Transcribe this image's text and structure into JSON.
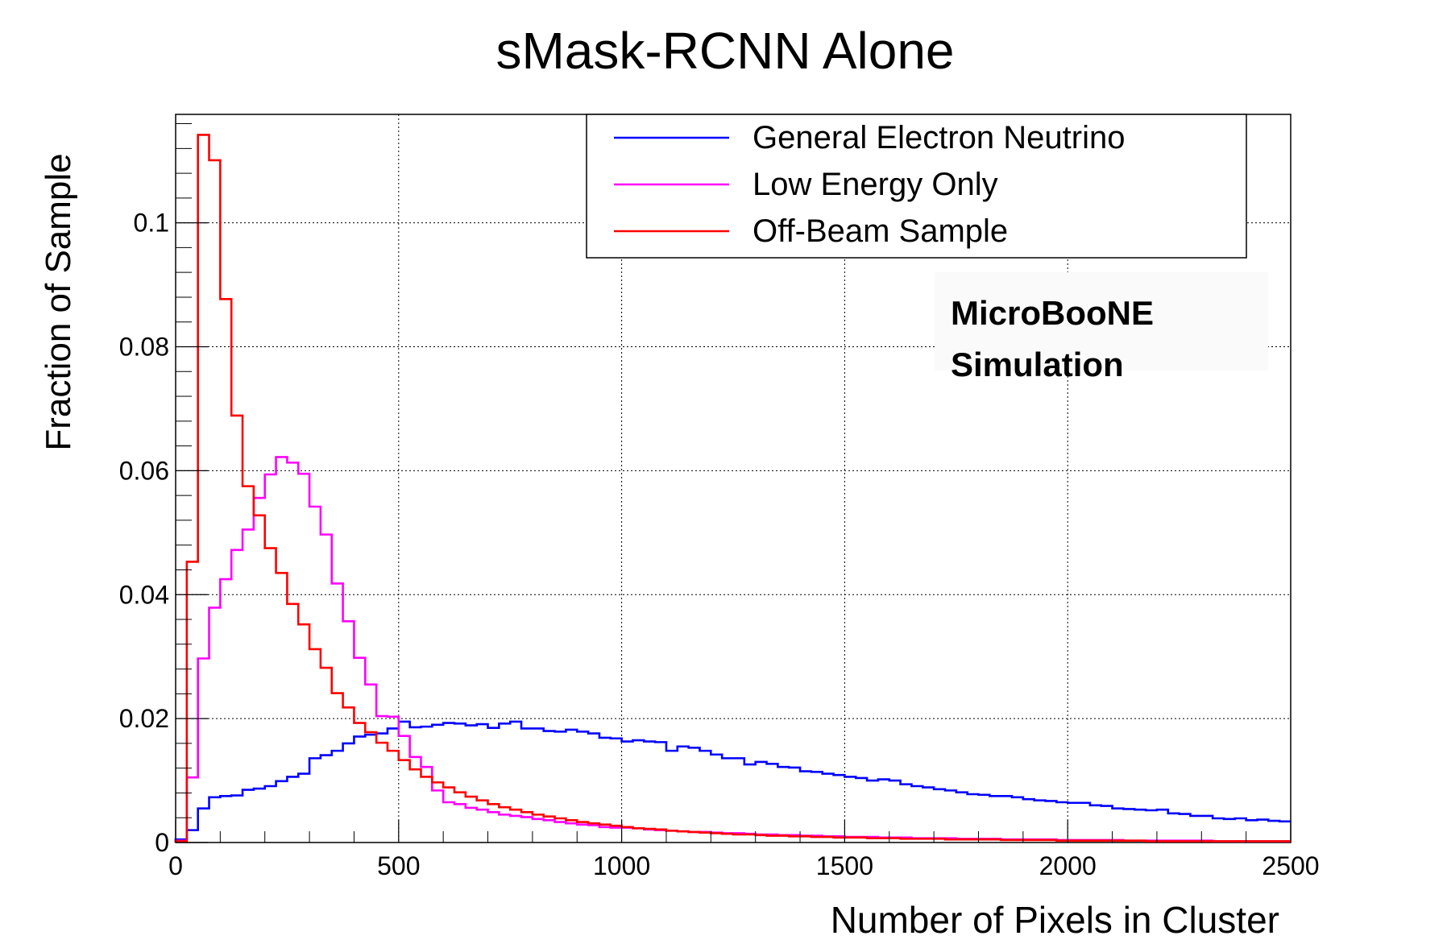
{
  "chart_data": {
    "type": "line",
    "title": "sMask-RCNN Alone",
    "xlabel": "Number of Pixels in Cluster",
    "ylabel": "Fraction of Sample",
    "xlim": [
      0,
      2500
    ],
    "ylim": [
      0,
      0.1175
    ],
    "grid": true,
    "x_ticks": [
      0,
      500,
      1000,
      1500,
      2000,
      2500
    ],
    "x_tick_labels": [
      "0",
      "500",
      "1000",
      "1500",
      "2000",
      "2500"
    ],
    "y_ticks": [
      0,
      0.02,
      0.04,
      0.06,
      0.08,
      0.1
    ],
    "y_tick_labels": [
      "0",
      "0.02",
      "0.04",
      "0.06",
      "0.08",
      "0.1"
    ],
    "legend_position": "top-right",
    "annotation": [
      "MicroBooNE",
      "Simulation"
    ],
    "bin_width": 25,
    "bin_edges_start": 0,
    "series": [
      {
        "name": "General Electron Neutrino",
        "color": "#0000ff",
        "values": [
          0.0005,
          0.002,
          0.0055,
          0.0073,
          0.0075,
          0.0076,
          0.0085,
          0.0087,
          0.0091,
          0.0099,
          0.0106,
          0.0111,
          0.0136,
          0.0141,
          0.0148,
          0.016,
          0.0171,
          0.0174,
          0.0176,
          0.0184,
          0.0195,
          0.0186,
          0.0187,
          0.019,
          0.0193,
          0.0192,
          0.0189,
          0.0191,
          0.0185,
          0.0192,
          0.0195,
          0.0184,
          0.0184,
          0.018,
          0.0179,
          0.0182,
          0.0179,
          0.0176,
          0.0169,
          0.0168,
          0.0163,
          0.0165,
          0.0163,
          0.0162,
          0.0148,
          0.0155,
          0.0153,
          0.0148,
          0.0142,
          0.0136,
          0.0136,
          0.0126,
          0.013,
          0.0127,
          0.0122,
          0.0121,
          0.0115,
          0.0114,
          0.0111,
          0.0109,
          0.0106,
          0.0104,
          0.01,
          0.0102,
          0.01,
          0.0094,
          0.0091,
          0.0089,
          0.0086,
          0.0084,
          0.0081,
          0.0078,
          0.0077,
          0.0075,
          0.0075,
          0.0073,
          0.007,
          0.0068,
          0.0067,
          0.0065,
          0.0064,
          0.0064,
          0.006,
          0.0059,
          0.0055,
          0.0054,
          0.0053,
          0.0052,
          0.0053,
          0.0047,
          0.0046,
          0.0043,
          0.0043,
          0.0039,
          0.0038,
          0.0039,
          0.0036,
          0.0037,
          0.0035,
          0.0034
        ]
      },
      {
        "name": "Low Energy Only",
        "color": "#ff00ff",
        "values": [
          0.0003,
          0.0105,
          0.0297,
          0.0379,
          0.0425,
          0.0472,
          0.0505,
          0.0556,
          0.0594,
          0.0622,
          0.0613,
          0.0595,
          0.0542,
          0.0497,
          0.0418,
          0.0357,
          0.0298,
          0.0255,
          0.0204,
          0.0203,
          0.0172,
          0.0138,
          0.0122,
          0.0084,
          0.0065,
          0.0062,
          0.0056,
          0.0053,
          0.0049,
          0.0045,
          0.0043,
          0.0041,
          0.0038,
          0.0036,
          0.0033,
          0.0031,
          0.0029,
          0.0028,
          0.0025,
          0.0024,
          0.0024,
          0.0023,
          0.0021,
          0.002,
          0.0019,
          0.0018,
          0.0017,
          0.0017,
          0.0016,
          0.0015,
          0.0015,
          0.0014,
          0.0013,
          0.0013,
          0.0012,
          0.0012,
          0.0011,
          0.0011,
          0.001,
          0.001,
          0.0009,
          0.0009,
          0.0009,
          0.0008,
          0.0008,
          0.0008,
          0.0007,
          0.0007,
          0.0007,
          0.0007,
          0.0006,
          0.0006,
          0.0006,
          0.0006,
          0.0005,
          0.0005,
          0.0005,
          0.0005,
          0.0005,
          0.0004,
          0.0004,
          0.0004,
          0.0004,
          0.0004,
          0.0004,
          0.0003,
          0.0003,
          0.0003,
          0.0003,
          0.0003,
          0.0003,
          0.0003,
          0.0003,
          0.0002,
          0.0002,
          0.0002,
          0.0002,
          0.0002,
          0.0002,
          0.0002
        ]
      },
      {
        "name": "Off-Beam Sample",
        "color": "#ff0000",
        "values": [
          0.0002,
          0.0453,
          0.1142,
          0.1101,
          0.0877,
          0.0689,
          0.0575,
          0.0528,
          0.0475,
          0.0435,
          0.0385,
          0.0352,
          0.0312,
          0.0282,
          0.0241,
          0.0218,
          0.0193,
          0.0178,
          0.0161,
          0.0148,
          0.0133,
          0.0118,
          0.0106,
          0.0097,
          0.0089,
          0.0081,
          0.0074,
          0.0068,
          0.0062,
          0.0057,
          0.0053,
          0.0049,
          0.0045,
          0.0042,
          0.0039,
          0.0036,
          0.0033,
          0.0031,
          0.0029,
          0.0027,
          0.0025,
          0.0023,
          0.0022,
          0.0021,
          0.0019,
          0.0018,
          0.0017,
          0.0016,
          0.0015,
          0.0014,
          0.0013,
          0.0013,
          0.0012,
          0.0011,
          0.0011,
          0.001,
          0.001,
          0.0009,
          0.0009,
          0.0008,
          0.0008,
          0.0008,
          0.0007,
          0.0007,
          0.0007,
          0.0006,
          0.0006,
          0.0006,
          0.0006,
          0.0005,
          0.0005,
          0.0005,
          0.0005,
          0.0005,
          0.0004,
          0.0004,
          0.0004,
          0.0004,
          0.0004,
          0.0003,
          0.0003,
          0.0003,
          0.0003,
          0.0003,
          0.0003,
          0.0003,
          0.0003,
          0.0002,
          0.0002,
          0.0002,
          0.0002,
          0.0002,
          0.0002,
          0.0002,
          0.0002,
          0.0002,
          0.0002,
          0.0002,
          0.0002,
          0.0002
        ]
      }
    ]
  }
}
